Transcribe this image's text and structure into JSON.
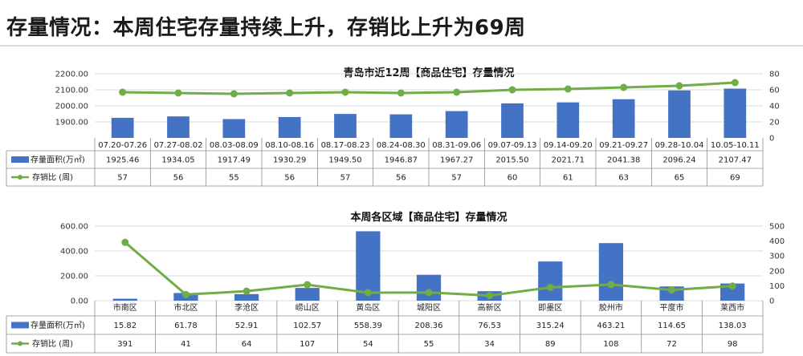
{
  "headline": "存量情况：本周住宅存量持续上升，存销比上升为69周",
  "colors": {
    "bar": "#4472c4",
    "line": "#70ad47",
    "grid": "#d9d9d9"
  },
  "chart_data": [
    {
      "type": "bar",
      "title": "青岛市近12周【商品住宅】存量情况",
      "categories": [
        "07.20-07.26",
        "07.27-08.02",
        "08.03-08.09",
        "08.10-08.16",
        "08.17-08.23",
        "08.24-08.30",
        "08.31-09.06",
        "09.07-09.13",
        "09.14-09.20",
        "09.21-09.27",
        "09.28-10.04",
        "10.05-10.11"
      ],
      "series": [
        {
          "name": "存量面积(万㎡)",
          "kind": "bar",
          "axis": "left",
          "labels": [
            "1925.46",
            "1934.05",
            "1917.49",
            "1930.29",
            "1949.50",
            "1946.87",
            "1967.27",
            "2015.50",
            "2021.71",
            "2041.38",
            "2096.24",
            "2107.47"
          ],
          "values": [
            1925.46,
            1934.05,
            1917.49,
            1930.29,
            1949.5,
            1946.87,
            1967.27,
            2015.5,
            2021.71,
            2041.38,
            2096.24,
            2107.47
          ]
        },
        {
          "name": "存销比 (周)",
          "kind": "line",
          "axis": "right",
          "labels": [
            "57",
            "56",
            "55",
            "56",
            "57",
            "56",
            "57",
            "60",
            "61",
            "63",
            "65",
            "69"
          ],
          "values": [
            57,
            56,
            55,
            56,
            57,
            56,
            57,
            60,
            61,
            63,
            65,
            69
          ]
        }
      ],
      "ylim_left": [
        1800,
        2200
      ],
      "yticks_left": [
        "2200.00",
        "2100.00",
        "2000.00",
        "1900.00"
      ],
      "yticks_left_values": [
        2200,
        2100,
        2000,
        1900
      ],
      "ylim_right": [
        0,
        80
      ],
      "yticks_right": [
        "80",
        "60",
        "40",
        "20",
        "0"
      ],
      "yticks_right_values": [
        80,
        60,
        40,
        20,
        0
      ],
      "legend": "data-table"
    },
    {
      "type": "bar",
      "title": "本周各区域【商品住宅】存量情况",
      "categories": [
        "市南区",
        "市北区",
        "李沧区",
        "崂山区",
        "黄岛区",
        "城阳区",
        "高新区",
        "即墨区",
        "胶州市",
        "平度市",
        "莱西市"
      ],
      "series": [
        {
          "name": "存量面积(万㎡)",
          "kind": "bar",
          "axis": "left",
          "labels": [
            "15.82",
            "61.78",
            "52.91",
            "102.57",
            "558.39",
            "208.36",
            "76.53",
            "315.24",
            "463.21",
            "114.65",
            "138.03"
          ],
          "values": [
            15.82,
            61.78,
            52.91,
            102.57,
            558.39,
            208.36,
            76.53,
            315.24,
            463.21,
            114.65,
            138.03
          ]
        },
        {
          "name": "存销比 (周)",
          "kind": "line",
          "axis": "right",
          "labels": [
            "391",
            "41",
            "64",
            "107",
            "54",
            "55",
            "34",
            "89",
            "108",
            "72",
            "98"
          ],
          "values": [
            391,
            41,
            64,
            107,
            54,
            55,
            34,
            89,
            108,
            72,
            98
          ]
        }
      ],
      "ylim_left": [
        0,
        600
      ],
      "yticks_left": [
        "600.00",
        "400.00",
        "200.00",
        "0.00"
      ],
      "yticks_left_values": [
        600,
        400,
        200,
        0
      ],
      "ylim_right": [
        0,
        500
      ],
      "yticks_right": [
        "500",
        "400",
        "300",
        "200",
        "100",
        "0"
      ],
      "yticks_right_values": [
        500,
        400,
        300,
        200,
        100,
        0
      ],
      "legend": "data-table"
    }
  ]
}
